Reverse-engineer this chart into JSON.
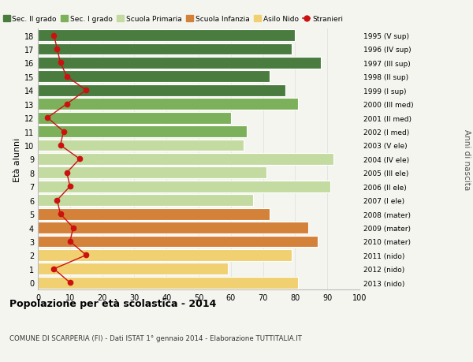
{
  "ages": [
    18,
    17,
    16,
    15,
    14,
    13,
    12,
    11,
    10,
    9,
    8,
    7,
    6,
    5,
    4,
    3,
    2,
    1,
    0
  ],
  "right_labels": [
    "1995 (V sup)",
    "1996 (IV sup)",
    "1997 (III sup)",
    "1998 (II sup)",
    "1999 (I sup)",
    "2000 (III med)",
    "2001 (II med)",
    "2002 (I med)",
    "2003 (V ele)",
    "2004 (IV ele)",
    "2005 (III ele)",
    "2006 (II ele)",
    "2007 (I ele)",
    "2008 (mater)",
    "2009 (mater)",
    "2010 (mater)",
    "2011 (nido)",
    "2012 (nido)",
    "2013 (nido)"
  ],
  "bar_values": [
    80,
    79,
    88,
    72,
    77,
    81,
    60,
    65,
    64,
    92,
    71,
    91,
    67,
    72,
    84,
    87,
    79,
    59,
    81
  ],
  "bar_colors": [
    "#4a7c3f",
    "#4a7c3f",
    "#4a7c3f",
    "#4a7c3f",
    "#4a7c3f",
    "#7db05a",
    "#7db05a",
    "#7db05a",
    "#c3dba0",
    "#c3dba0",
    "#c3dba0",
    "#c3dba0",
    "#c3dba0",
    "#d4813a",
    "#d4813a",
    "#d4813a",
    "#f0d070",
    "#f0d070",
    "#f0d070"
  ],
  "stranieri_values": [
    5,
    6,
    7,
    9,
    15,
    9,
    3,
    8,
    7,
    13,
    9,
    10,
    6,
    7,
    11,
    10,
    15,
    5,
    10
  ],
  "legend_labels": [
    "Sec. II grado",
    "Sec. I grado",
    "Scuola Primaria",
    "Scuola Infanzia",
    "Asilo Nido",
    "Stranieri"
  ],
  "legend_colors": [
    "#4a7c3f",
    "#7db05a",
    "#c3dba0",
    "#d4813a",
    "#f0d070",
    "#cc1111"
  ],
  "ylabel_left": "Età alunni",
  "ylabel_right": "Anni di nascita",
  "title_bold": "Popolazione per età scolastica - 2014",
  "subtitle": "COMUNE DI SCARPERIA (FI) - Dati ISTAT 1° gennaio 2014 - Elaborazione TUTTITALIA.IT",
  "background_color": "#f5f5f0",
  "grid_color": "#dddddd"
}
